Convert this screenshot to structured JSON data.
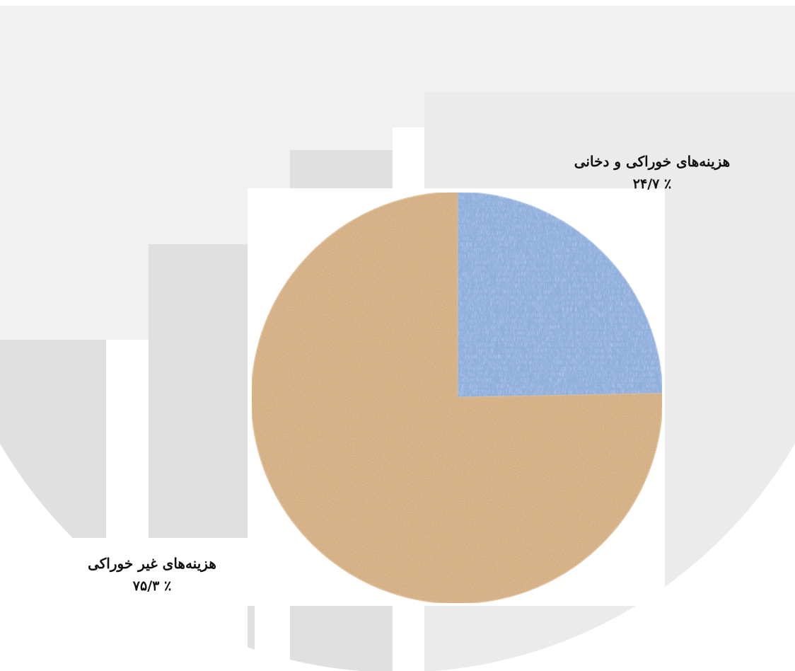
{
  "chart_data": {
    "type": "pie",
    "slices": [
      {
        "label": "هزینه‌های خوراکی و دخانی",
        "value": 24.7,
        "display": "٪ ۲۴/۷",
        "color": "#5b7fbf"
      },
      {
        "label": "هزینه‌های غیر خوراکی",
        "value": 75.3,
        "display": "٪ ۷۵/۳",
        "color": "#b07a48"
      }
    ]
  }
}
